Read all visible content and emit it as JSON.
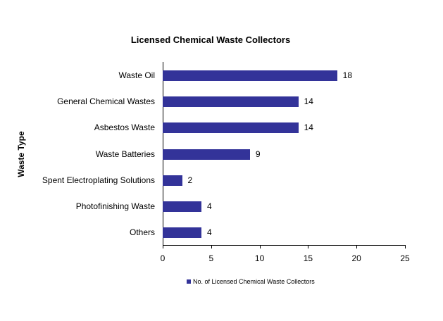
{
  "chart_data": {
    "type": "bar",
    "orientation": "horizontal",
    "title": "Licensed Chemical Waste Collectors",
    "xlabel": "",
    "ylabel": "Waste Type",
    "categories": [
      "Waste Oil",
      "General Chemical Wastes",
      "Asbestos Waste",
      "Waste Batteries",
      "Spent Electroplating Solutions",
      "Photofinishing Waste",
      "Others"
    ],
    "series": [
      {
        "name": "No. of Licensed Chemical Waste Collectors",
        "values": [
          18,
          14,
          14,
          9,
          2,
          4,
          4
        ],
        "color": "#333399"
      }
    ],
    "xlim": [
      0,
      25
    ],
    "xticks": [
      "0",
      "5",
      "10",
      "15",
      "20",
      "25"
    ],
    "grid": false,
    "legend_position": "bottom",
    "data_labels": true
  }
}
